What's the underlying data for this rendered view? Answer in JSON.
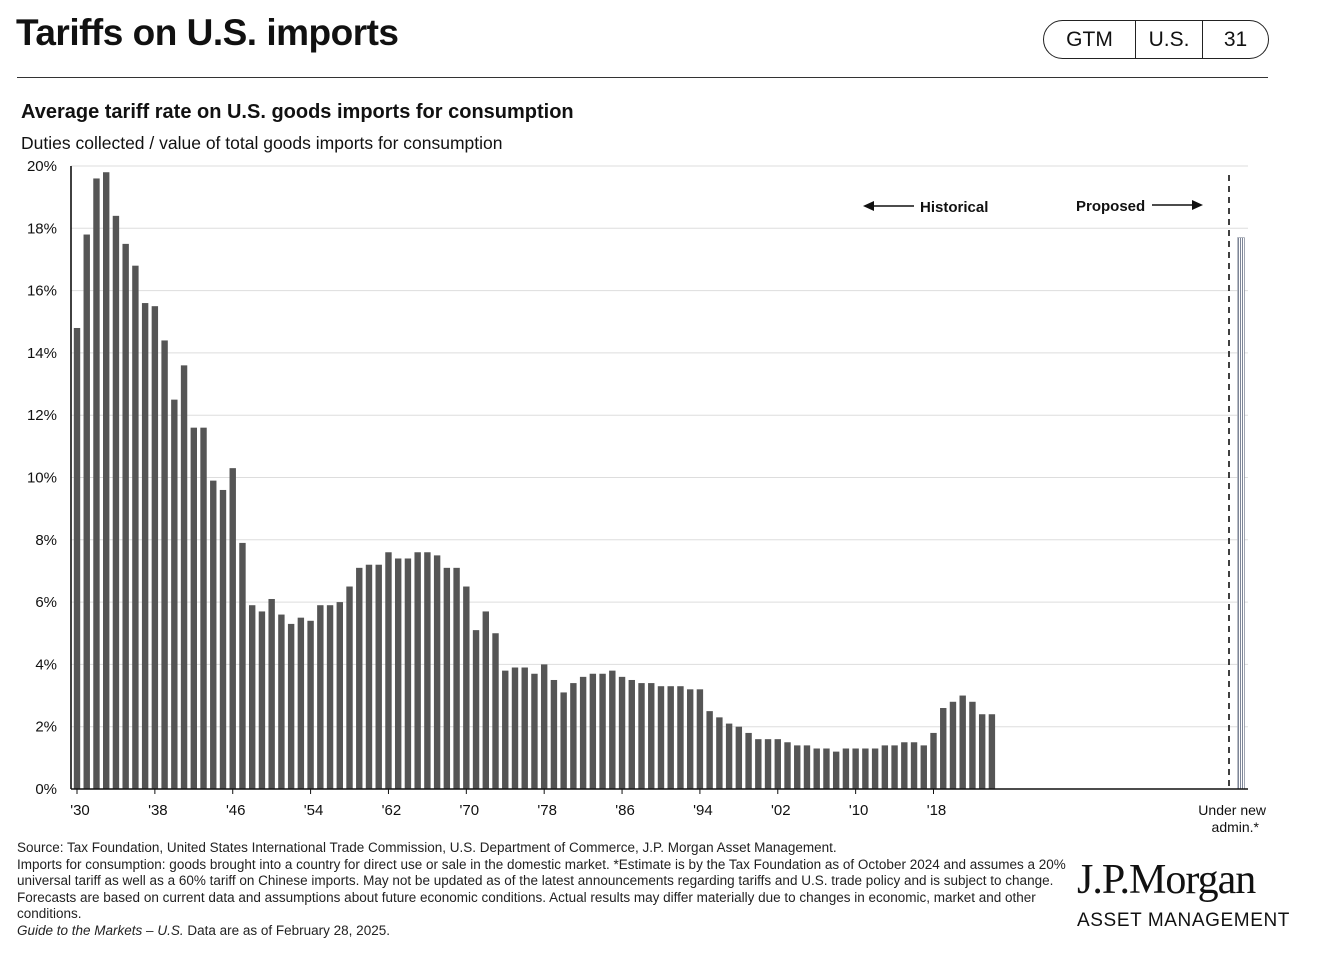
{
  "header": {
    "title": "Tariffs on U.S. imports",
    "nav": [
      "GTM",
      "U.S.",
      "31"
    ]
  },
  "chart_data": {
    "type": "bar",
    "title": "Average tariff rate on U.S. goods imports for consumption",
    "subtitle": "Duties collected / value of total goods imports for consumption",
    "xlabel": "",
    "ylabel": "",
    "ylim": [
      0,
      20
    ],
    "y_ticks": [
      "0%",
      "2%",
      "4%",
      "6%",
      "8%",
      "10%",
      "12%",
      "14%",
      "16%",
      "18%",
      "20%"
    ],
    "x_ticks": [
      "'30",
      "'38",
      "'46",
      "'54",
      "'62",
      "'70",
      "'78",
      "'86",
      "'94",
      "'02",
      "'10",
      "'18"
    ],
    "categories": [
      "1930",
      "1931",
      "1932",
      "1933",
      "1934",
      "1935",
      "1936",
      "1937",
      "1938",
      "1939",
      "1940",
      "1941",
      "1942",
      "1943",
      "1944",
      "1945",
      "1946",
      "1947",
      "1948",
      "1949",
      "1950",
      "1951",
      "1952",
      "1953",
      "1954",
      "1955",
      "1956",
      "1957",
      "1958",
      "1959",
      "1960",
      "1961",
      "1962",
      "1963",
      "1964",
      "1965",
      "1966",
      "1967",
      "1968",
      "1969",
      "1970",
      "1971",
      "1972",
      "1973",
      "1974",
      "1975",
      "1976",
      "1977",
      "1978",
      "1979",
      "1980",
      "1981",
      "1982",
      "1983",
      "1984",
      "1985",
      "1986",
      "1987",
      "1988",
      "1989",
      "1990",
      "1991",
      "1992",
      "1993",
      "1994",
      "1995",
      "1996",
      "1997",
      "1998",
      "1999",
      "2000",
      "2001",
      "2002",
      "2003",
      "2004",
      "2005",
      "2006",
      "2007",
      "2008",
      "2009",
      "2010",
      "2011",
      "2012",
      "2013",
      "2014",
      "2015",
      "2016",
      "2017",
      "2018",
      "2019",
      "2020",
      "2021",
      "2022",
      "2023",
      "2024"
    ],
    "values": [
      14.8,
      17.8,
      19.6,
      19.8,
      18.4,
      17.5,
      16.8,
      15.6,
      15.5,
      14.4,
      12.5,
      13.6,
      11.6,
      11.6,
      9.9,
      9.6,
      10.3,
      7.9,
      5.9,
      5.7,
      6.1,
      5.6,
      5.3,
      5.5,
      5.4,
      5.9,
      5.9,
      6.0,
      6.5,
      7.1,
      7.2,
      7.2,
      7.6,
      7.4,
      7.4,
      7.6,
      7.6,
      7.5,
      7.1,
      7.1,
      6.5,
      5.1,
      5.7,
      5.0,
      3.8,
      3.9,
      3.9,
      3.7,
      4.0,
      3.5,
      3.1,
      3.4,
      3.6,
      3.7,
      3.7,
      3.8,
      3.6,
      3.5,
      3.4,
      3.4,
      3.3,
      3.3,
      3.3,
      3.2,
      3.2,
      2.5,
      2.3,
      2.1,
      2.0,
      1.8,
      1.6,
      1.6,
      1.6,
      1.5,
      1.4,
      1.4,
      1.3,
      1.3,
      1.2,
      1.3,
      1.3,
      1.3,
      1.3,
      1.4,
      1.4,
      1.5,
      1.5,
      1.4,
      1.8,
      2.6,
      2.8,
      3.0,
      2.8,
      2.4,
      2.4
    ],
    "proposed": {
      "label": "Under new admin.*",
      "value": 17.7
    },
    "annotations": {
      "historical": "Historical",
      "proposed": "Proposed"
    },
    "colors": {
      "bar": "#555555",
      "proposed": "#8a8f9e",
      "grid": "#dddddd"
    },
    "grid": true
  },
  "footer": {
    "source": "Source: Tax Foundation, United States International Trade Commission, U.S. Department of Commerce, J.P. Morgan Asset Management.",
    "note": "Imports for consumption: goods brought into a country for direct use or sale in the domestic market. *Estimate is by the Tax Foundation as of October 2024 and assumes a 20% universal tariff as well as a 60% tariff on Chinese imports. May not be updated as of the latest announcements regarding tariffs and U.S. trade policy and is subject to change. Forecasts are based on current data and assumptions about future economic conditions. Actual results may differ materially due to changes in economic, market and other conditions.",
    "guide_title": "Guide to the Markets – U.S.",
    "data_as_of": "Data are as of February 28, 2025."
  },
  "logo": {
    "brand": "J.P.Morgan",
    "sub": "ASSET MANAGEMENT"
  }
}
